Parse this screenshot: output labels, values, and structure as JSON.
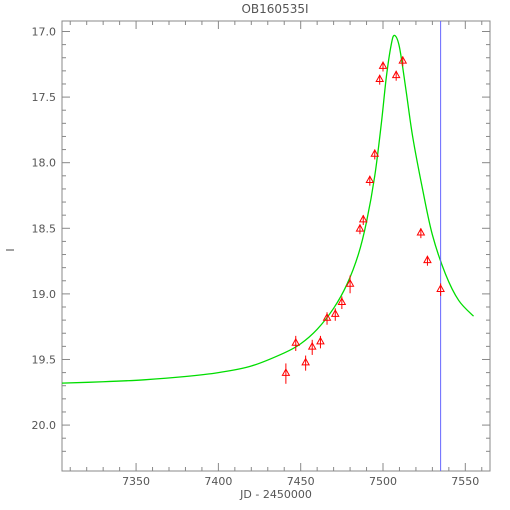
{
  "chart_data": {
    "type": "scatter",
    "title": "OB160535I",
    "xlabel": "JD - 2450000",
    "ylabel": "I",
    "xlim": [
      7305,
      7565
    ],
    "ylim": [
      20.35,
      16.92
    ],
    "y_inverted": true,
    "x_ticks": [
      7350,
      7400,
      7450,
      7500,
      7550
    ],
    "y_ticks": [
      17.0,
      17.5,
      18.0,
      18.5,
      19.0,
      19.5,
      20.0
    ],
    "grid": false,
    "series": [
      {
        "kind": "points",
        "marker": "triangle-with-errorbar",
        "color": "#ff0000",
        "points": [
          {
            "x": 7441,
            "y": 19.6,
            "err": 0.07
          },
          {
            "x": 7447,
            "y": 19.37,
            "err": 0.05
          },
          {
            "x": 7453,
            "y": 19.52,
            "err": 0.05
          },
          {
            "x": 7457,
            "y": 19.4,
            "err": 0.05
          },
          {
            "x": 7462,
            "y": 19.36,
            "err": 0.04
          },
          {
            "x": 7466,
            "y": 19.18,
            "err": 0.04
          },
          {
            "x": 7471,
            "y": 19.15,
            "err": 0.04
          },
          {
            "x": 7475,
            "y": 19.06,
            "err": 0.04
          },
          {
            "x": 7480,
            "y": 18.92,
            "err": 0.06
          },
          {
            "x": 7486,
            "y": 18.5,
            "err": 0.03
          },
          {
            "x": 7488,
            "y": 18.43,
            "err": 0.03
          },
          {
            "x": 7492,
            "y": 18.13,
            "err": 0.03
          },
          {
            "x": 7495,
            "y": 17.93,
            "err": 0.03
          },
          {
            "x": 7498,
            "y": 17.36,
            "err": 0.03
          },
          {
            "x": 7500,
            "y": 17.26,
            "err": 0.03
          },
          {
            "x": 7508,
            "y": 17.33,
            "err": 0.03
          },
          {
            "x": 7512,
            "y": 17.22,
            "err": 0.03
          },
          {
            "x": 7523,
            "y": 18.53,
            "err": 0.03
          },
          {
            "x": 7527,
            "y": 18.74,
            "err": 0.03
          },
          {
            "x": 7535,
            "y": 18.96,
            "err": 0.04
          }
        ]
      },
      {
        "kind": "model-curve",
        "color": "#00dd00",
        "x": [
          7305,
          7330,
          7355,
          7380,
          7400,
          7420,
          7440,
          7450,
          7460,
          7470,
          7478,
          7485,
          7490,
          7495,
          7499,
          7502,
          7505,
          7507,
          7510,
          7514,
          7518,
          7524,
          7530,
          7538,
          7546,
          7555
        ],
        "y": [
          19.68,
          19.67,
          19.655,
          19.63,
          19.6,
          19.55,
          19.45,
          19.38,
          19.27,
          19.11,
          18.93,
          18.7,
          18.45,
          18.1,
          17.7,
          17.35,
          17.1,
          17.03,
          17.12,
          17.45,
          17.8,
          18.2,
          18.55,
          18.85,
          19.05,
          19.17
        ]
      }
    ],
    "vertical_lines": [
      {
        "x": 7535,
        "color": "#6666ff"
      }
    ]
  }
}
